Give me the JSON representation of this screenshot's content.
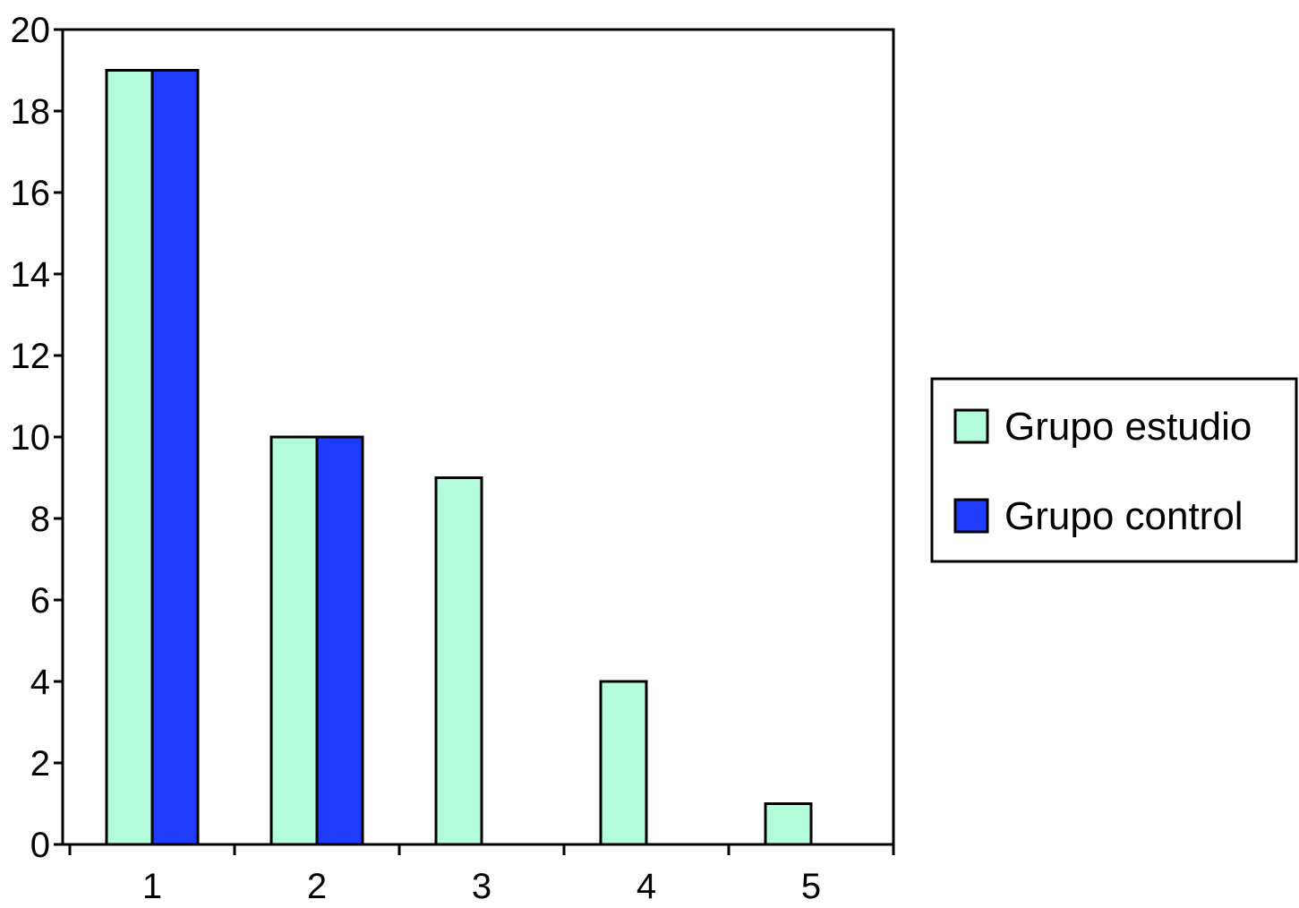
{
  "chart_data": {
    "type": "bar",
    "title": "",
    "xlabel": "",
    "ylabel": "",
    "categories": [
      "1",
      "2",
      "3",
      "4",
      "5"
    ],
    "series": [
      {
        "name": "Grupo estudio",
        "values": [
          19,
          10,
          9,
          4,
          1
        ],
        "color": "#b3fcdc"
      },
      {
        "name": "Grupo control",
        "values": [
          19,
          10,
          0,
          0,
          0
        ],
        "color": "#1f3bfb"
      }
    ],
    "ylim": [
      0,
      20
    ],
    "yticks": [
      "0",
      "2",
      "4",
      "6",
      "8",
      "10",
      "12",
      "14",
      "16",
      "18",
      "20"
    ],
    "grid": false,
    "legend_position": "right"
  }
}
